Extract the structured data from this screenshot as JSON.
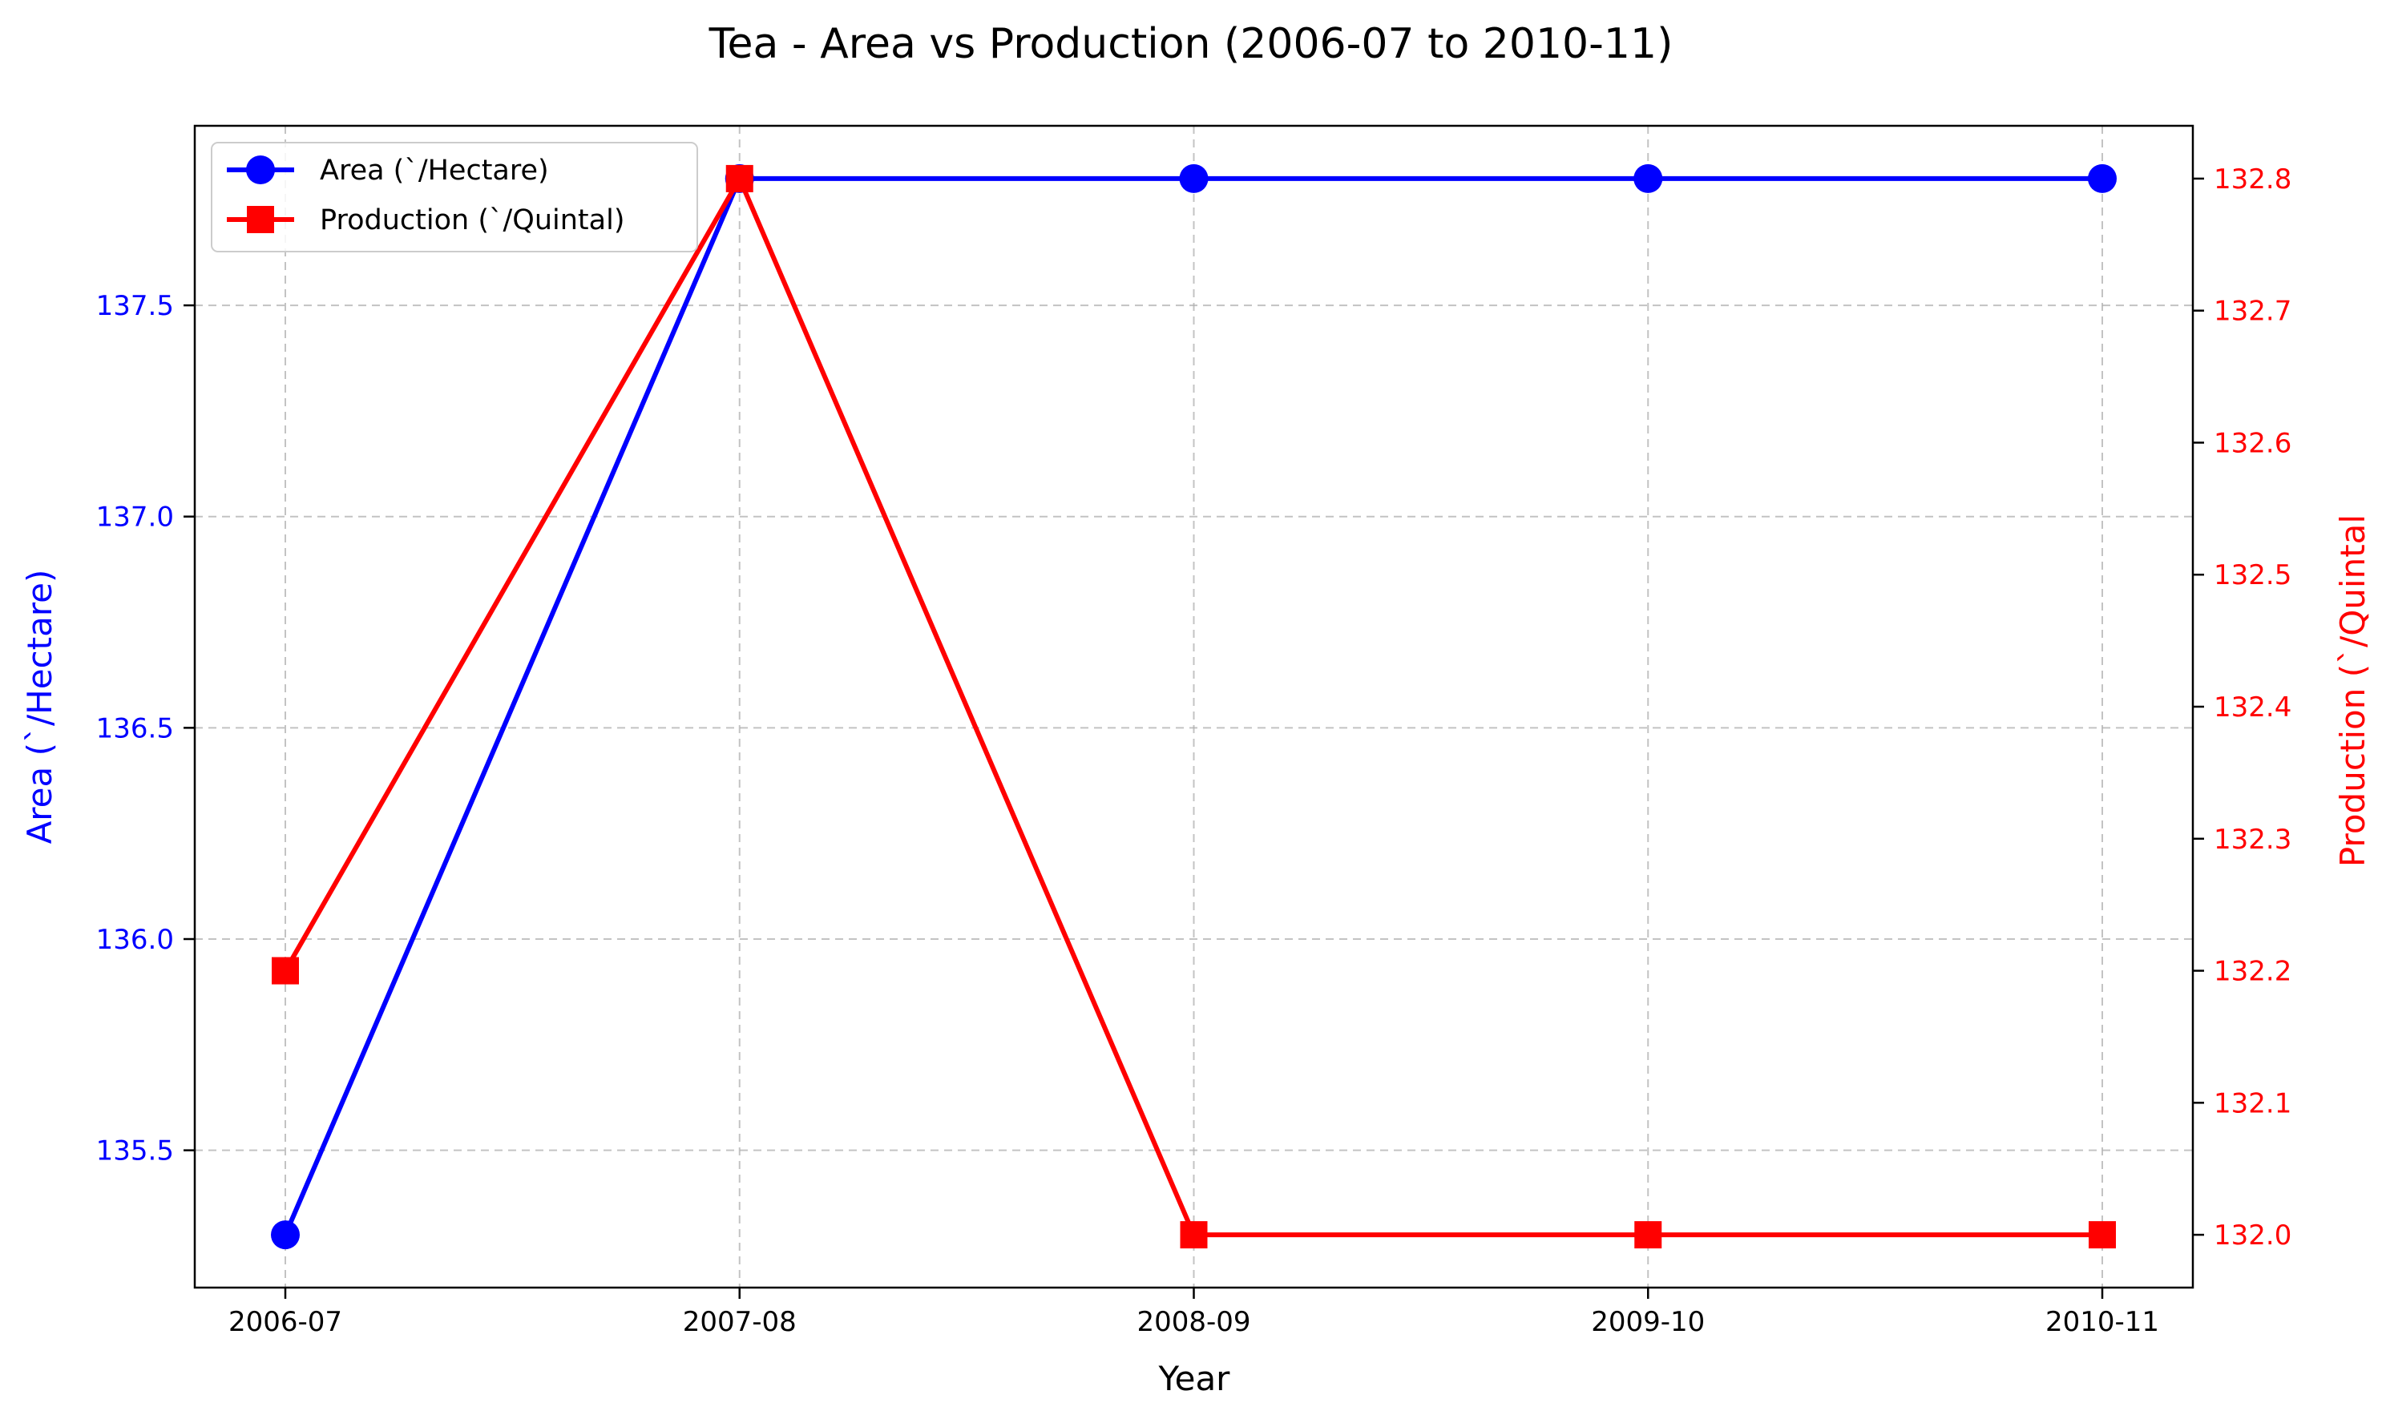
{
  "chart_data": {
    "type": "line",
    "title": "Tea  - Area vs Production (2006-07 to 2010-11)",
    "xlabel": "Year",
    "categories": [
      "2006-07",
      "2007-08",
      "2008-09",
      "2009-10",
      "2010-11"
    ],
    "grid": true,
    "legend_position": "top-left",
    "series": [
      {
        "name": "Area (`/Hectare)",
        "axis": "left",
        "color": "#0000ff",
        "marker": "circle",
        "values": [
          135.3,
          137.8,
          137.8,
          137.8,
          137.8
        ]
      },
      {
        "name": "Production (`/Quintal)",
        "axis": "right",
        "color": "#ff0000",
        "marker": "square",
        "values": [
          132.2,
          132.8,
          132.0,
          132.0,
          132.0
        ]
      }
    ],
    "y_left": {
      "label": "Area (`/Hectare)",
      "color": "#0000ff",
      "ticks": [
        135.5,
        136.0,
        136.5,
        137.0,
        137.5
      ],
      "range": [
        135.175,
        137.925
      ]
    },
    "y_right": {
      "label": "Production (`/Quintal",
      "color": "#ff0000",
      "ticks": [
        132.0,
        132.1,
        132.2,
        132.3,
        132.4,
        132.5,
        132.6,
        132.7,
        132.8
      ],
      "range": [
        131.96,
        132.84
      ]
    }
  }
}
